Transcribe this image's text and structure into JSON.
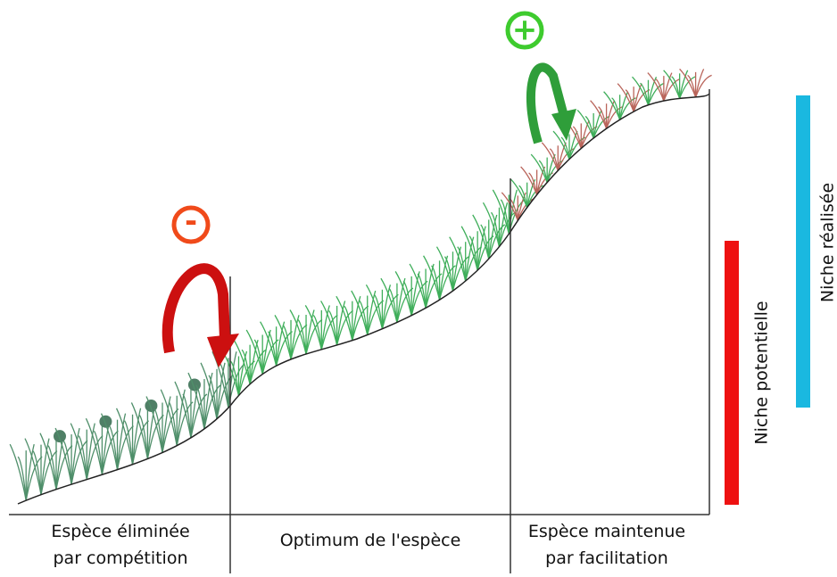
{
  "symbols": {
    "negative": "-",
    "positive": "+"
  },
  "zones": [
    {
      "lines": [
        "Espèce éliminée",
        "par compétition"
      ]
    },
    {
      "lines": [
        "Optimum de l'espèce"
      ]
    },
    {
      "lines": [
        "Espèce maintenue",
        "par facilitation"
      ]
    }
  ],
  "niches": {
    "potential": "Niche potentielle",
    "realized": "Niche réalisée"
  }
}
